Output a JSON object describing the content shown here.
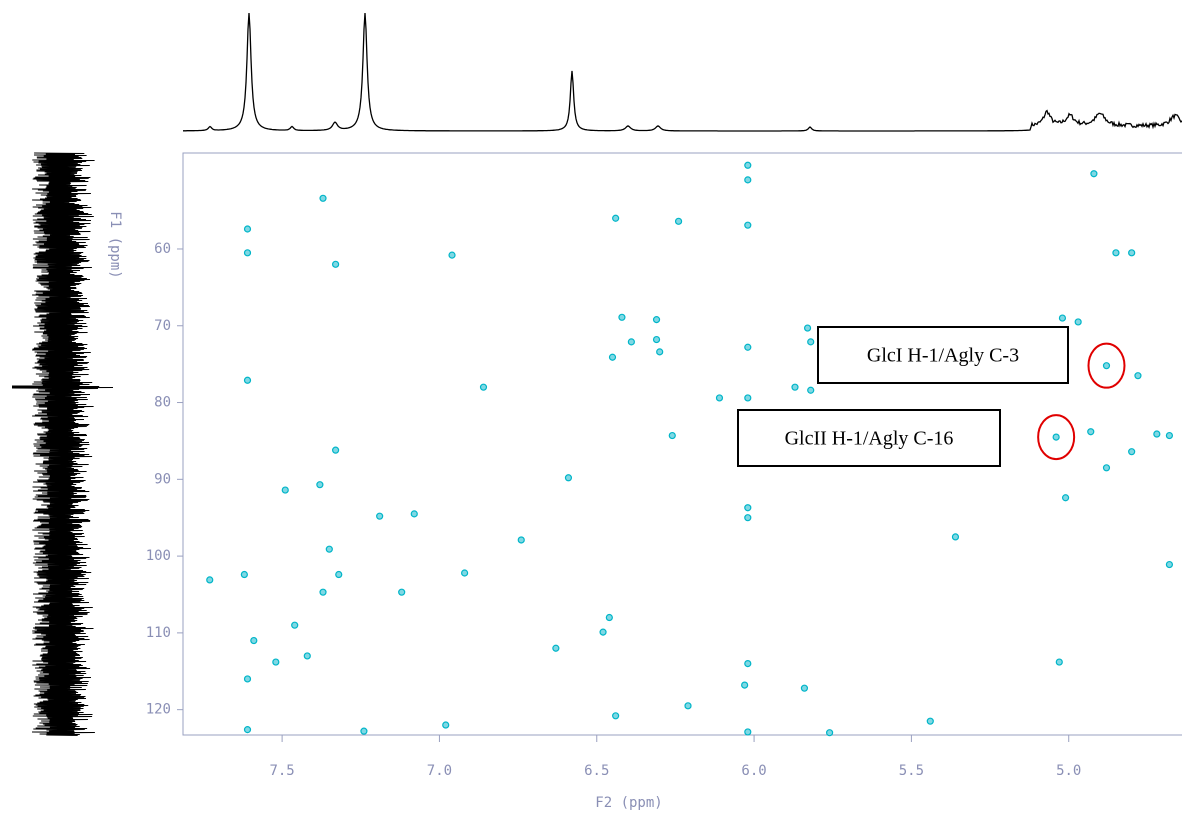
{
  "chart_data": {
    "type": "scatter",
    "x_label": "F2 (ppm)",
    "y_label": "F1 (ppm)",
    "color": "#00b5c8",
    "x": [
      4.92,
      6.02,
      6.02,
      7.37,
      7.61,
      7.61,
      6.02,
      6.24,
      6.44,
      4.8,
      4.85,
      6.96,
      7.33,
      6.42,
      6.31,
      6.31,
      6.3,
      6.39,
      5.83,
      5.82,
      5.02,
      4.97,
      4.88,
      4.78,
      6.02,
      6.45,
      7.61,
      6.86,
      5.87,
      5.82,
      6.02,
      6.11,
      6.26,
      5.04,
      4.93,
      4.72,
      4.68,
      4.8,
      4.88,
      7.33,
      6.59,
      7.38,
      7.49,
      5.01,
      6.02,
      6.02,
      7.19,
      7.08,
      6.74,
      5.36,
      7.35,
      7.32,
      7.62,
      7.73,
      6.92,
      7.37,
      7.12,
      4.68,
      7.46,
      6.46,
      6.48,
      7.42,
      6.63,
      7.59,
      7.61,
      6.02,
      5.03,
      6.03,
      5.84,
      7.52,
      6.44,
      6.21,
      6.98,
      5.44,
      7.61,
      7.24,
      6.02,
      5.76
    ],
    "y": [
      50.2,
      49.1,
      51.0,
      53.4,
      57.4,
      60.5,
      56.9,
      56.4,
      56.0,
      60.5,
      60.5,
      60.8,
      62.0,
      68.9,
      69.2,
      71.8,
      73.4,
      72.1,
      70.3,
      72.1,
      69.0,
      69.5,
      75.2,
      76.5,
      72.8,
      74.1,
      77.1,
      78.0,
      78.0,
      78.4,
      79.4,
      79.4,
      84.3,
      84.5,
      83.8,
      84.1,
      84.3,
      86.4,
      88.5,
      86.2,
      89.8,
      90.7,
      91.4,
      92.4,
      93.7,
      95.0,
      94.8,
      94.5,
      97.9,
      97.5,
      99.1,
      102.4,
      102.4,
      103.1,
      102.2,
      104.7,
      104.7,
      101.1,
      109.0,
      108.0,
      109.9,
      113.0,
      112.0,
      111.0,
      116.0,
      114.0,
      113.8,
      116.8,
      117.2,
      113.8,
      120.8,
      119.5,
      122.0,
      121.5,
      122.6,
      122.8,
      122.9,
      123.0
    ],
    "xlim": [
      7.815,
      4.64
    ],
    "xticks": [
      7.5,
      {
        "value": 7,
        "label": "7.0"
      },
      6.5,
      {
        "value": 6,
        "label": "6.0"
      },
      5.5,
      {
        "value": 5,
        "label": "5.0"
      }
    ],
    "ylim": [
      123.3,
      47.5
    ],
    "yticks": [
      60,
      70,
      80,
      90,
      100,
      110,
      120
    ],
    "annotations": [
      {
        "text": "GlcI H-1/Agly C-3",
        "x": 4.88,
        "y": 75.2
      },
      {
        "text": "GlcII H-1/Agly C-16",
        "x": 5.04,
        "y": 84.5
      }
    ]
  }
}
